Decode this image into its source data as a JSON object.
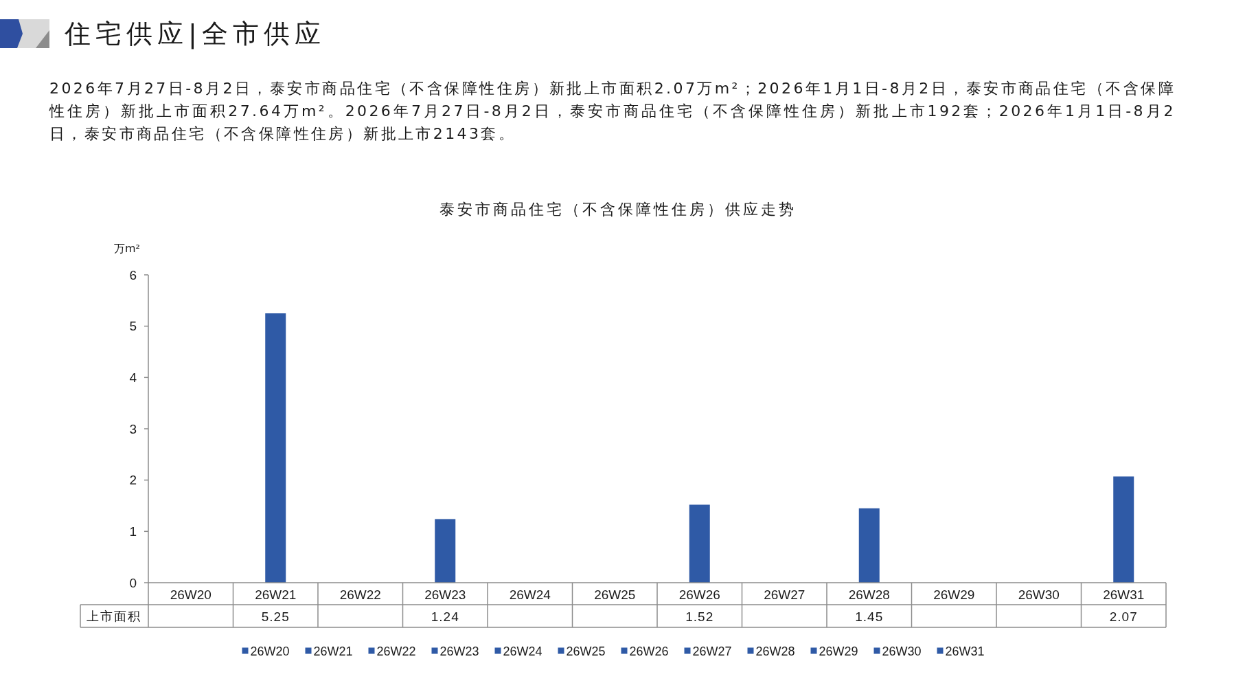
{
  "chart_data": {
    "type": "bar",
    "title": "泰安市商品住宅（不含保障性住房）供应走势",
    "ylabel": "万m²",
    "annotations": [
      "住宅供应|全市供应",
      "2026年7月27日-8月2日，泰安市商品住宅（不含保障性住房）新批上市面积2.07万m²；2026年1月1日-8月2日，泰安市商品住宅（不含保障性住房）新批上市面积27.64万m²。2026年7月27日-8月2日，泰安市商品住宅（不含保障性住房）新批上市192套；2026年1月1日-8月2日，泰安市商品住宅（不含保障性住房）新批上市2143套。"
    ],
    "categories": [
      "26W20",
      "26W21",
      "26W22",
      "26W23",
      "26W24",
      "26W25",
      "26W26",
      "26W27",
      "26W28",
      "26W29",
      "26W30",
      "26W31"
    ],
    "series": [
      {
        "name": "上市面积",
        "colors": [
          "#2f5aa6",
          "#2f5aa6",
          "#2f5aa6",
          "#2f5aa6",
          "#2f5aa6",
          "#2f5aa6",
          "#2f5aa6",
          "#2f5aa6",
          "#2f5aa6",
          "#2f5aa6",
          "#2f5aa6",
          "#2f5aa6"
        ],
        "values": [
          null,
          5.25,
          null,
          1.24,
          null,
          null,
          1.52,
          null,
          1.45,
          null,
          null,
          2.07
        ]
      }
    ],
    "ylim": [
      0,
      6
    ],
    "yticks": [
      0,
      1,
      2,
      3,
      4,
      5,
      6
    ],
    "data_labels": true,
    "legend": "bottom"
  }
}
